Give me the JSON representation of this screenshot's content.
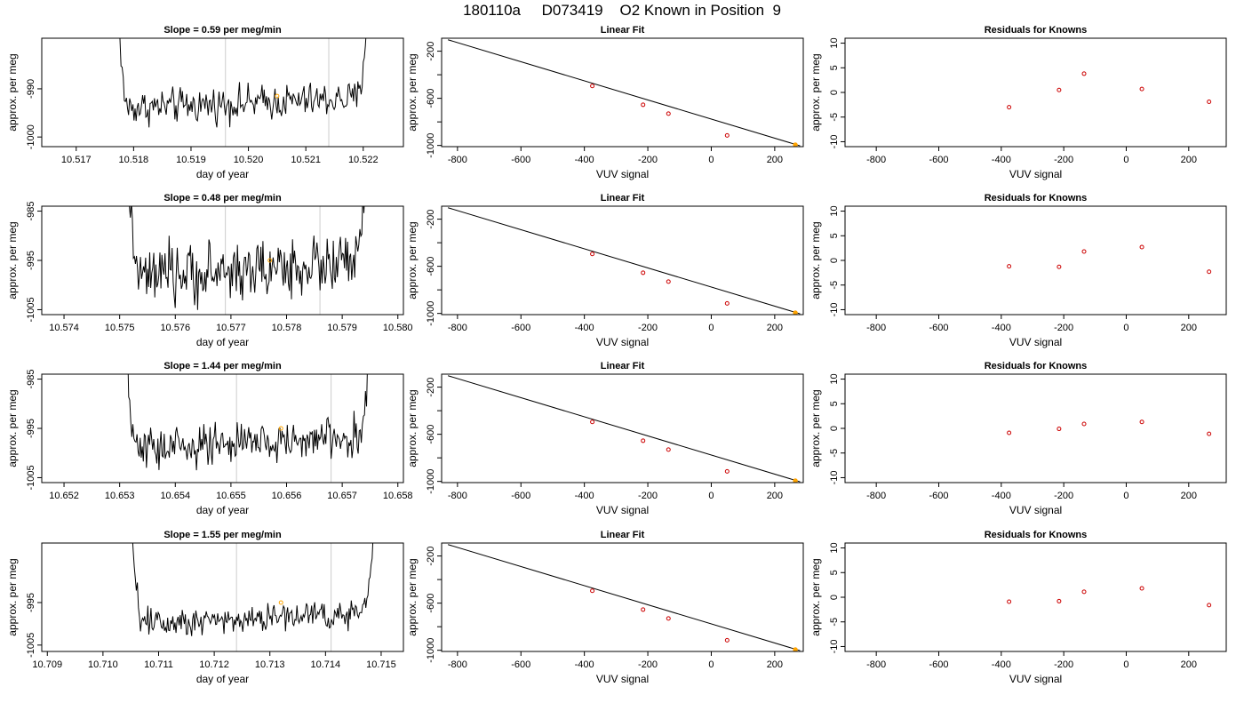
{
  "page": {
    "title": "180110a     D073419    O2 Known in Position  9"
  },
  "chart_data": [
    {
      "type": "line",
      "row": 0,
      "col": 0,
      "title": "Slope =  0.59  per meg/min",
      "xlabel": "day of year",
      "ylabel": "approx. per meg",
      "xlim": [
        10.5164,
        10.5227
      ],
      "ylim": [
        -1002,
        -979.5
      ],
      "xticks": [
        10.517,
        10.518,
        10.519,
        10.52,
        10.521,
        10.522
      ],
      "yticks": [
        -1000,
        -990
      ],
      "vlines": [
        10.5196,
        10.5214
      ],
      "x_start": 10.51765,
      "x_end": 10.52215,
      "base": -993,
      "noise": 1.8,
      "marker": {
        "x": 10.5205,
        "y": -991.5
      },
      "colors": {
        "line": "#000000",
        "vline": "#cccccc",
        "marker": "#ffa500"
      }
    },
    {
      "type": "scatter",
      "row": 0,
      "col": 1,
      "title": "Linear Fit",
      "xlabel": "VUV signal",
      "ylabel": "approx. per meg",
      "xlim": [
        -850,
        290
      ],
      "ylim": [
        -1010,
        -90
      ],
      "xticks": [
        -800,
        -600,
        -400,
        -200,
        0,
        200
      ],
      "yticks": [
        -1000,
        -600,
        -200
      ],
      "yminor": [
        -800,
        -400
      ],
      "fit": {
        "x": [
          -830,
          280
        ],
        "y": [
          -103,
          -1003
        ]
      },
      "points": [
        {
          "x": -375,
          "y": -495
        },
        {
          "x": -215,
          "y": -655
        },
        {
          "x": -135,
          "y": -730
        },
        {
          "x": 50,
          "y": -915
        },
        {
          "x": 265,
          "y": -995
        }
      ],
      "highlight": {
        "x": 265,
        "y": -995
      },
      "colors": {
        "line": "#000000",
        "points": "#cc0000",
        "highlight": "#ffa500"
      }
    },
    {
      "type": "scatter",
      "row": 0,
      "col": 2,
      "title": "Residuals for Knowns",
      "xlabel": "VUV signal",
      "ylabel": "approx. per meg",
      "xlim": [
        -900,
        320
      ],
      "ylim": [
        -11,
        11
      ],
      "xticks": [
        -800,
        -600,
        -400,
        -200,
        0,
        200
      ],
      "yticks": [
        -10,
        -5,
        0,
        5,
        10
      ],
      "points": [
        {
          "x": -375,
          "y": -3.0
        },
        {
          "x": -215,
          "y": 0.5
        },
        {
          "x": -135,
          "y": 3.8
        },
        {
          "x": 50,
          "y": 0.7
        },
        {
          "x": 265,
          "y": -1.9
        }
      ],
      "colors": {
        "points": "#cc0000"
      }
    },
    {
      "type": "line",
      "row": 1,
      "col": 0,
      "title": "Slope =  0.48  per meg/min",
      "xlabel": "day of year",
      "ylabel": "approx. per meg",
      "xlim": [
        10.5736,
        10.5801
      ],
      "ylim": [
        -1006,
        -984
      ],
      "xticks": [
        10.574,
        10.575,
        10.576,
        10.577,
        10.578,
        10.579,
        10.58
      ],
      "yticks": [
        -1005,
        -995,
        -985
      ],
      "vlines": [
        10.5769,
        10.5786
      ],
      "x_start": 10.5751,
      "x_end": 10.5795,
      "base": -997,
      "noise": 3.0,
      "marker": {
        "x": 10.5777,
        "y": -995
      },
      "colors": {
        "line": "#000000",
        "vline": "#cccccc",
        "marker": "#ffa500"
      }
    },
    {
      "type": "scatter",
      "row": 1,
      "col": 1,
      "title": "Linear Fit",
      "xlabel": "VUV signal",
      "ylabel": "approx. per meg",
      "xlim": [
        -850,
        290
      ],
      "ylim": [
        -1010,
        -90
      ],
      "xticks": [
        -800,
        -600,
        -400,
        -200,
        0,
        200
      ],
      "yticks": [
        -1000,
        -600,
        -200
      ],
      "yminor": [
        -800,
        -400
      ],
      "fit": {
        "x": [
          -830,
          280
        ],
        "y": [
          -103,
          -1003
        ]
      },
      "points": [
        {
          "x": -375,
          "y": -495
        },
        {
          "x": -215,
          "y": -655
        },
        {
          "x": -135,
          "y": -730
        },
        {
          "x": 50,
          "y": -915
        },
        {
          "x": 265,
          "y": -995
        }
      ],
      "highlight": {
        "x": 265,
        "y": -995
      },
      "colors": {
        "line": "#000000",
        "points": "#cc0000",
        "highlight": "#ffa500"
      }
    },
    {
      "type": "scatter",
      "row": 1,
      "col": 2,
      "title": "Residuals for Knowns",
      "xlabel": "VUV signal",
      "ylabel": "approx. per meg",
      "xlim": [
        -900,
        320
      ],
      "ylim": [
        -11,
        11
      ],
      "xticks": [
        -800,
        -600,
        -400,
        -200,
        0,
        200
      ],
      "yticks": [
        -10,
        -5,
        0,
        5,
        10
      ],
      "points": [
        {
          "x": -375,
          "y": -1.2
        },
        {
          "x": -215,
          "y": -1.3
        },
        {
          "x": -135,
          "y": 1.8
        },
        {
          "x": 50,
          "y": 2.7
        },
        {
          "x": 265,
          "y": -2.3
        }
      ],
      "colors": {
        "points": "#cc0000"
      }
    },
    {
      "type": "line",
      "row": 2,
      "col": 0,
      "title": "Slope =  1.44  per meg/min",
      "xlabel": "day of year",
      "ylabel": "approx. per meg",
      "xlim": [
        10.6516,
        10.6581
      ],
      "ylim": [
        -1006,
        -984
      ],
      "xticks": [
        10.652,
        10.653,
        10.654,
        10.655,
        10.656,
        10.657,
        10.658
      ],
      "yticks": [
        -1005,
        -995,
        -985
      ],
      "vlines": [
        10.6551,
        10.6568
      ],
      "x_start": 10.65305,
      "x_end": 10.65755,
      "base": -998,
      "noise": 2.2,
      "marker": {
        "x": 10.6559,
        "y": -995
      },
      "colors": {
        "line": "#000000",
        "vline": "#cccccc",
        "marker": "#ffa500"
      }
    },
    {
      "type": "scatter",
      "row": 2,
      "col": 1,
      "title": "Linear Fit",
      "xlabel": "VUV signal",
      "ylabel": "approx. per meg",
      "xlim": [
        -850,
        290
      ],
      "ylim": [
        -1010,
        -90
      ],
      "xticks": [
        -800,
        -600,
        -400,
        -200,
        0,
        200
      ],
      "yticks": [
        -1000,
        -600,
        -200
      ],
      "yminor": [
        -800,
        -400
      ],
      "fit": {
        "x": [
          -830,
          280
        ],
        "y": [
          -103,
          -1003
        ]
      },
      "points": [
        {
          "x": -375,
          "y": -495
        },
        {
          "x": -215,
          "y": -655
        },
        {
          "x": -135,
          "y": -730
        },
        {
          "x": 50,
          "y": -915
        },
        {
          "x": 265,
          "y": -995
        }
      ],
      "highlight": {
        "x": 265,
        "y": -995
      },
      "colors": {
        "line": "#000000",
        "points": "#cc0000",
        "highlight": "#ffa500"
      }
    },
    {
      "type": "scatter",
      "row": 2,
      "col": 2,
      "title": "Residuals for Knowns",
      "xlabel": "VUV signal",
      "ylabel": "approx. per meg",
      "xlim": [
        -900,
        320
      ],
      "ylim": [
        -11,
        11
      ],
      "xticks": [
        -800,
        -600,
        -400,
        -200,
        0,
        200
      ],
      "yticks": [
        -10,
        -5,
        0,
        5,
        10
      ],
      "points": [
        {
          "x": -375,
          "y": -0.9
        },
        {
          "x": -215,
          "y": -0.1
        },
        {
          "x": -135,
          "y": 0.9
        },
        {
          "x": 50,
          "y": 1.3
        },
        {
          "x": 265,
          "y": -1.1
        }
      ],
      "colors": {
        "points": "#cc0000"
      }
    },
    {
      "type": "line",
      "row": 3,
      "col": 0,
      "title": "Slope =  1.55  per meg/min",
      "xlabel": "day of year",
      "ylabel": "approx. per meg",
      "xlim": [
        10.7089,
        10.7154
      ],
      "ylim": [
        -1006.5,
        -981
      ],
      "xticks": [
        10.709,
        10.71,
        10.711,
        10.712,
        10.713,
        10.714,
        10.715
      ],
      "yticks": [
        -1005,
        -995
      ],
      "vlines": [
        10.7124,
        10.7141
      ],
      "x_start": 10.71045,
      "x_end": 10.71495,
      "base": -998.5,
      "noise": 1.8,
      "marker": {
        "x": 10.7132,
        "y": -995
      },
      "colors": {
        "line": "#000000",
        "vline": "#cccccc",
        "marker": "#ffa500"
      }
    },
    {
      "type": "scatter",
      "row": 3,
      "col": 1,
      "title": "Linear Fit",
      "xlabel": "VUV signal",
      "ylabel": "approx. per meg",
      "xlim": [
        -850,
        290
      ],
      "ylim": [
        -1010,
        -90
      ],
      "xticks": [
        -800,
        -600,
        -400,
        -200,
        0,
        200
      ],
      "yticks": [
        -1000,
        -600,
        -200
      ],
      "yminor": [
        -800,
        -400
      ],
      "fit": {
        "x": [
          -830,
          280
        ],
        "y": [
          -103,
          -1003
        ]
      },
      "points": [
        {
          "x": -375,
          "y": -495
        },
        {
          "x": -215,
          "y": -655
        },
        {
          "x": -135,
          "y": -730
        },
        {
          "x": 50,
          "y": -915
        },
        {
          "x": 265,
          "y": -995
        }
      ],
      "highlight": {
        "x": 265,
        "y": -995
      },
      "colors": {
        "line": "#000000",
        "points": "#cc0000",
        "highlight": "#ffa500"
      }
    },
    {
      "type": "scatter",
      "row": 3,
      "col": 2,
      "title": "Residuals for Knowns",
      "xlabel": "VUV signal",
      "ylabel": "approx. per meg",
      "xlim": [
        -900,
        320
      ],
      "ylim": [
        -11,
        11
      ],
      "xticks": [
        -800,
        -600,
        -400,
        -200,
        0,
        200
      ],
      "yticks": [
        -10,
        -5,
        0,
        5,
        10
      ],
      "points": [
        {
          "x": -375,
          "y": -0.9
        },
        {
          "x": -215,
          "y": -0.8
        },
        {
          "x": -135,
          "y": 1.1
        },
        {
          "x": 50,
          "y": 1.8
        },
        {
          "x": 265,
          "y": -1.6
        }
      ],
      "colors": {
        "points": "#cc0000"
      }
    }
  ]
}
